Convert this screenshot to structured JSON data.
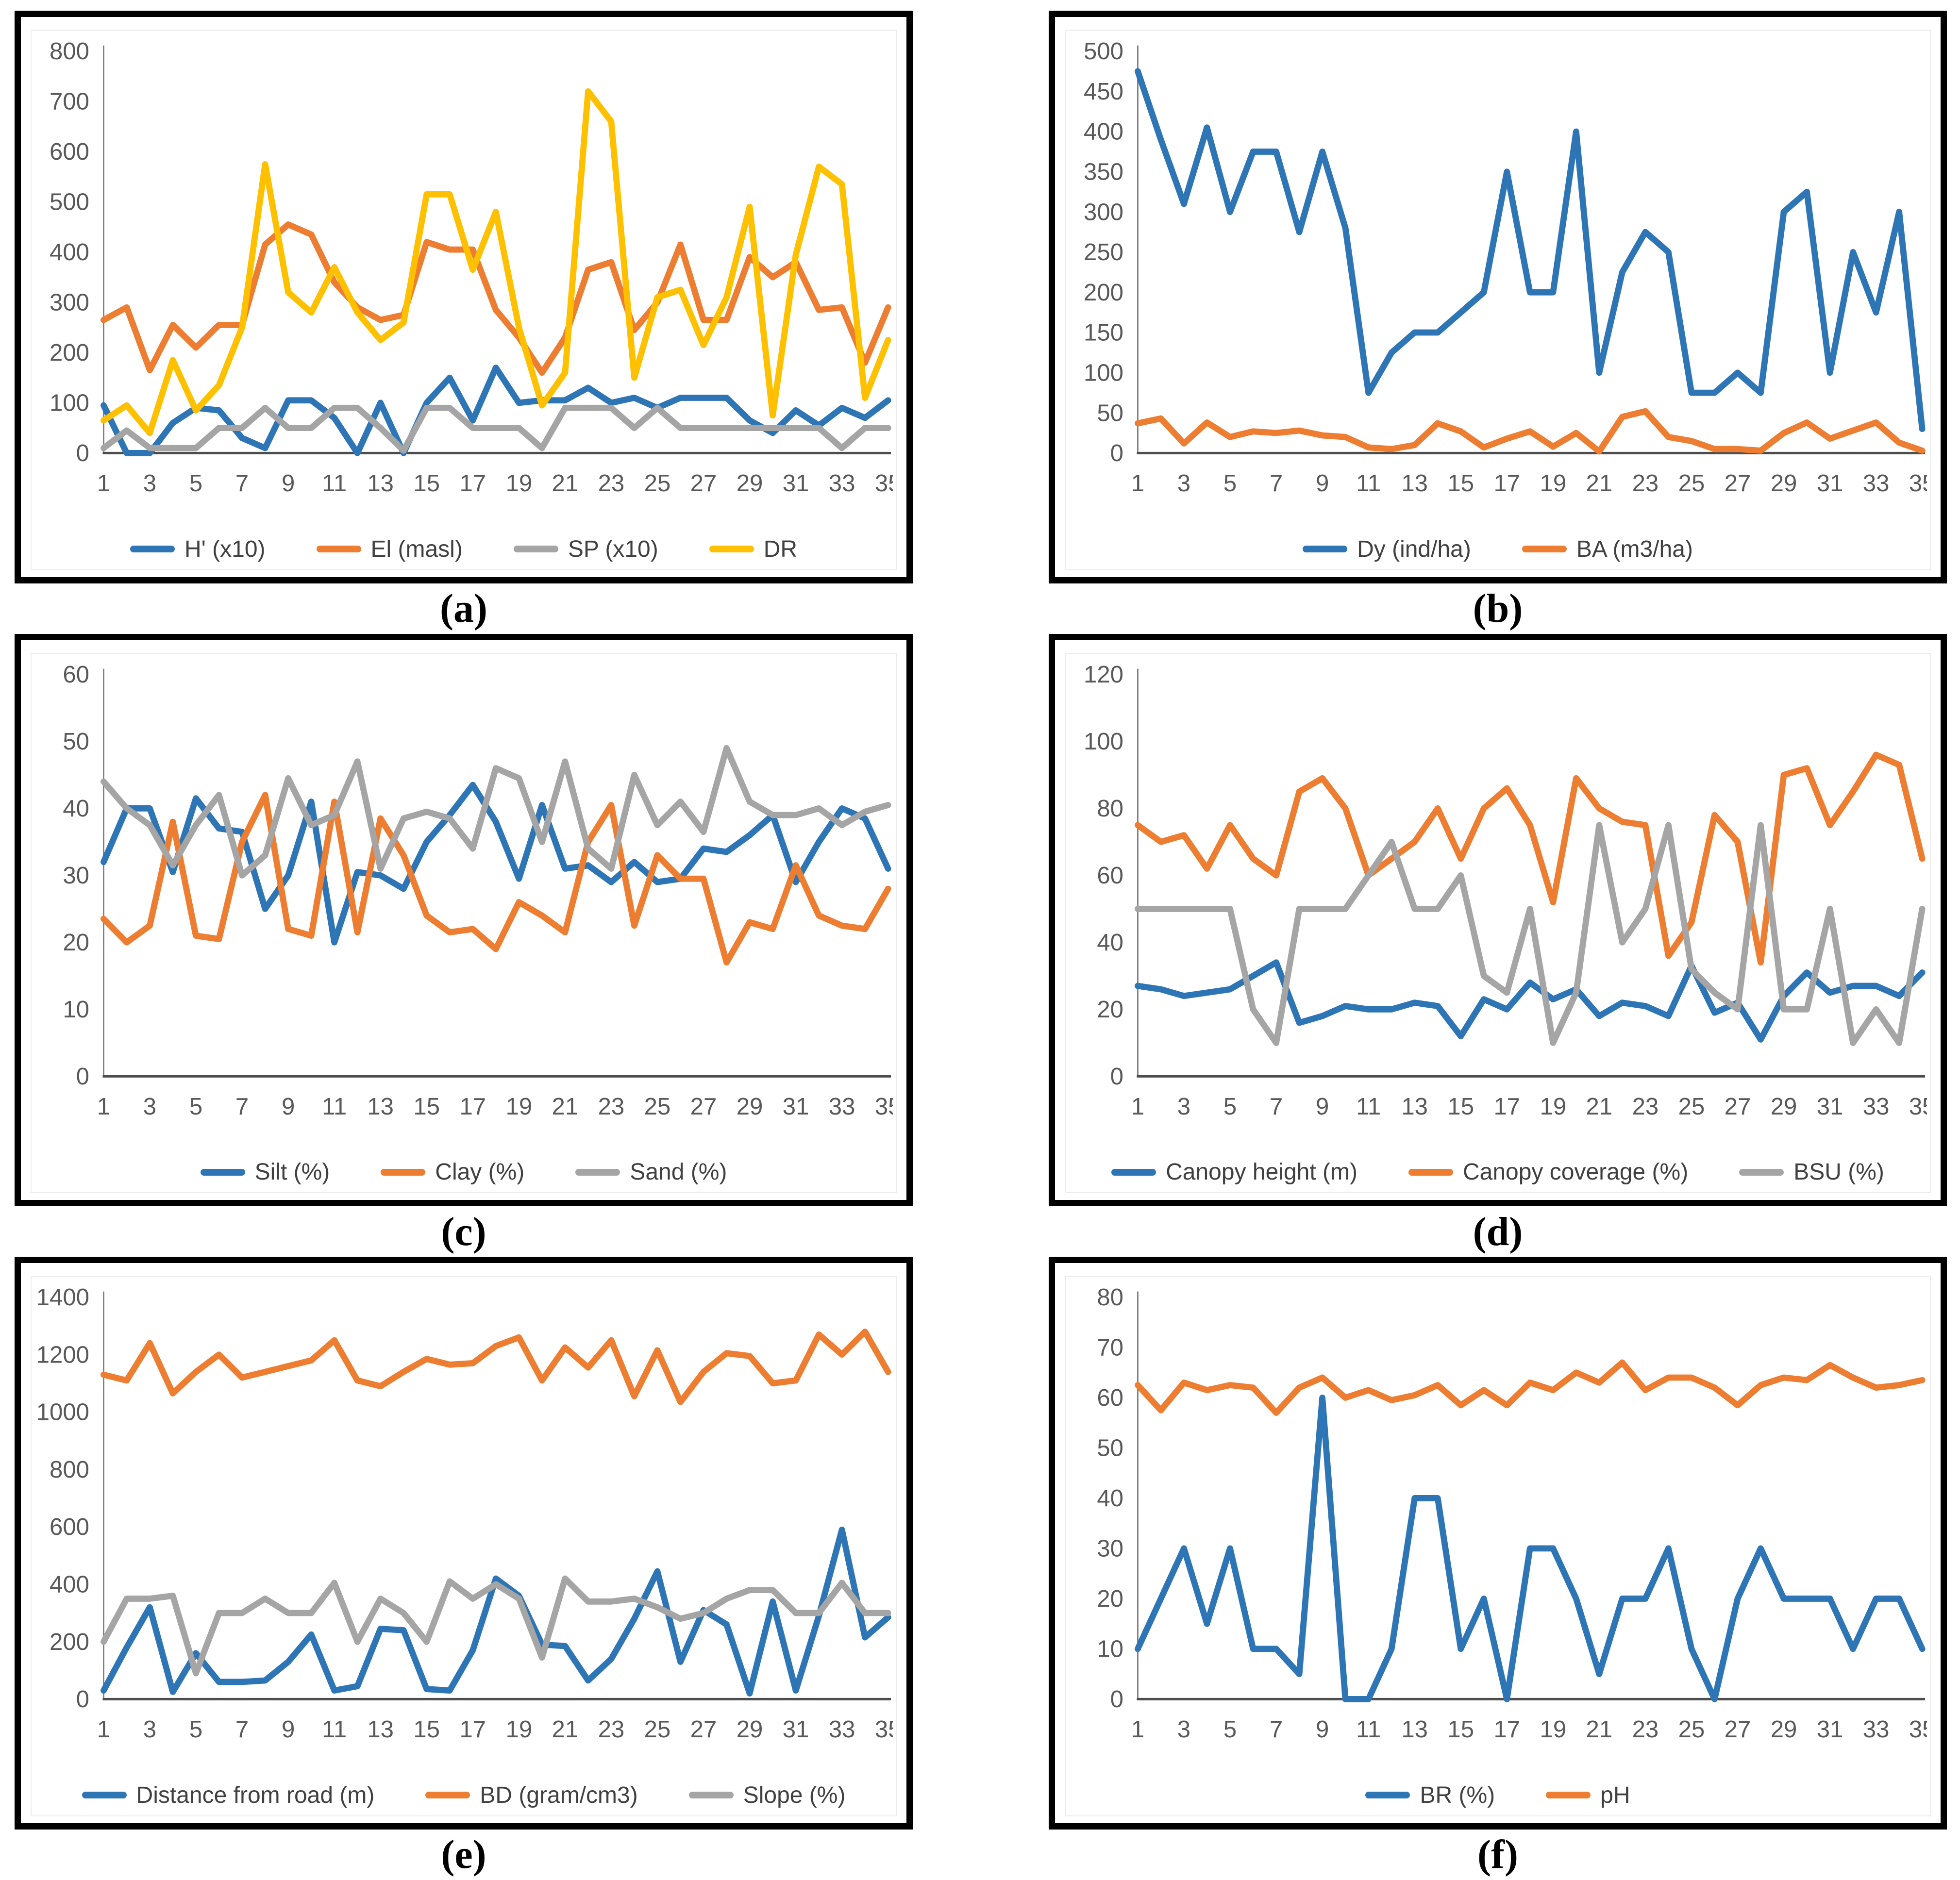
{
  "figure": {
    "background": "#ffffff",
    "panel_border_color": "#000000"
  },
  "axis": {
    "text_color": "#595959",
    "y_line_color": "#808080",
    "x_line_color": "#4d4d4d"
  },
  "x_axis": {
    "n_points": 35,
    "shown_tick_labels": [
      "1",
      "3",
      "5",
      "7",
      "9",
      "11",
      "13",
      "15",
      "17",
      "19",
      "21",
      "23",
      "25",
      "27",
      "29",
      "31",
      "33",
      "35"
    ]
  },
  "chart_data": [
    {
      "panel_letter": "a",
      "caption": "(a)",
      "type": "line",
      "ylim": [
        0,
        800
      ],
      "ytick_step": 100,
      "yticks": [
        0,
        100,
        200,
        300,
        400,
        500,
        600,
        700,
        800
      ],
      "grid": false,
      "legend_position": "bottom",
      "series": [
        {
          "name": "H' (x10)",
          "color": "#2E75B6",
          "values": [
            95,
            0,
            0,
            60,
            90,
            85,
            30,
            10,
            105,
            105,
            70,
            0,
            100,
            0,
            100,
            150,
            65,
            170,
            100,
            105,
            105,
            130,
            100,
            110,
            90,
            110,
            110,
            110,
            65,
            40,
            85,
            55,
            90,
            70,
            105
          ]
        },
        {
          "name": "El (masl)",
          "color": "#ED7D31",
          "values": [
            265,
            290,
            165,
            255,
            210,
            255,
            255,
            415,
            455,
            435,
            340,
            290,
            265,
            275,
            420,
            405,
            405,
            285,
            230,
            160,
            230,
            365,
            380,
            245,
            300,
            415,
            265,
            265,
            390,
            350,
            380,
            285,
            290,
            180,
            290
          ]
        },
        {
          "name": "SP (x10)",
          "color": "#A5A5A5",
          "values": [
            10,
            45,
            10,
            10,
            10,
            50,
            50,
            90,
            50,
            50,
            90,
            90,
            50,
            5,
            90,
            90,
            50,
            50,
            50,
            10,
            90,
            90,
            90,
            50,
            90,
            50,
            50,
            50,
            50,
            50,
            50,
            50,
            10,
            50,
            50
          ]
        },
        {
          "name": "DR",
          "color": "#FFC000",
          "values": [
            65,
            95,
            40,
            185,
            85,
            135,
            250,
            575,
            320,
            280,
            370,
            280,
            225,
            260,
            515,
            515,
            365,
            480,
            250,
            95,
            160,
            720,
            660,
            150,
            310,
            325,
            215,
            310,
            490,
            75,
            395,
            570,
            535,
            110,
            225
          ]
        }
      ]
    },
    {
      "panel_letter": "b",
      "caption": "(b)",
      "type": "line",
      "ylim": [
        0,
        500
      ],
      "ytick_step": 50,
      "yticks": [
        0,
        50,
        100,
        150,
        200,
        250,
        300,
        350,
        400,
        450,
        500
      ],
      "grid": false,
      "legend_position": "bottom",
      "series": [
        {
          "name": "Dy (ind/ha)",
          "color": "#2E75B6",
          "values": [
            475,
            390,
            310,
            405,
            300,
            375,
            375,
            275,
            375,
            280,
            75,
            125,
            150,
            150,
            175,
            200,
            350,
            200,
            200,
            400,
            100,
            225,
            275,
            250,
            75,
            75,
            100,
            75,
            300,
            325,
            100,
            250,
            175,
            300,
            30
          ]
        },
        {
          "name": "BA (m3/ha)",
          "color": "#ED7D31",
          "values": [
            37,
            43,
            12,
            38,
            20,
            27,
            25,
            28,
            22,
            20,
            7,
            5,
            10,
            37,
            27,
            7,
            18,
            27,
            8,
            25,
            2,
            45,
            52,
            20,
            15,
            5,
            5,
            3,
            25,
            38,
            18,
            28,
            38,
            13,
            3
          ]
        }
      ]
    },
    {
      "panel_letter": "c",
      "caption": "(c)",
      "type": "line",
      "ylim": [
        0,
        60
      ],
      "ytick_step": 10,
      "yticks": [
        0,
        10,
        20,
        30,
        40,
        50,
        60
      ],
      "grid": false,
      "legend_position": "bottom",
      "series": [
        {
          "name": "Silt (%)",
          "color": "#2E75B6",
          "values": [
            32,
            40,
            40,
            30.5,
            41.5,
            37,
            36.5,
            25,
            30,
            41,
            20,
            30.5,
            30,
            28,
            35,
            39,
            43.5,
            38,
            29.5,
            40.5,
            31,
            31.5,
            29,
            32,
            29,
            29.5,
            34,
            33.5,
            36,
            39,
            29,
            35,
            40,
            38.5,
            31
          ]
        },
        {
          "name": "Clay (%)",
          "color": "#ED7D31",
          "values": [
            23.5,
            20,
            22.5,
            38,
            21,
            20.5,
            35,
            42,
            22,
            21,
            41,
            21.5,
            38.5,
            33,
            24,
            21.5,
            22,
            19,
            26,
            24,
            21.5,
            35,
            40.5,
            22.5,
            33,
            29.5,
            29.5,
            17,
            23,
            22,
            31.5,
            24,
            22.5,
            22,
            28
          ]
        },
        {
          "name": "Sand (%)",
          "color": "#A5A5A5",
          "values": [
            44,
            40,
            37.5,
            31.5,
            37.5,
            42,
            30,
            33,
            44.5,
            37.5,
            39,
            47,
            31,
            38.5,
            39.5,
            38.5,
            34,
            46,
            44.5,
            35,
            47,
            34,
            31,
            45,
            37.5,
            41,
            36.5,
            49,
            41,
            39,
            39,
            40,
            37.5,
            39.5,
            40.5
          ]
        }
      ]
    },
    {
      "panel_letter": "d",
      "caption": "(d)",
      "type": "line",
      "ylim": [
        0,
        120
      ],
      "ytick_step": 20,
      "yticks": [
        0,
        20,
        40,
        60,
        80,
        100,
        120
      ],
      "grid": false,
      "legend_position": "bottom",
      "series": [
        {
          "name": "Canopy height (m)",
          "color": "#2E75B6",
          "values": [
            27,
            26,
            24,
            25,
            26,
            30,
            34,
            16,
            18,
            21,
            20,
            20,
            22,
            21,
            12,
            23,
            20,
            28,
            23,
            26,
            18,
            22,
            21,
            18,
            33,
            19,
            22,
            11,
            24,
            31,
            25,
            27,
            27,
            24,
            31
          ]
        },
        {
          "name": "Canopy coverage (%)",
          "color": "#ED7D31",
          "values": [
            75,
            70,
            72,
            62,
            75,
            65,
            60,
            85,
            89,
            80,
            60,
            65,
            70,
            80,
            65,
            80,
            86,
            75,
            52,
            89,
            80,
            76,
            75,
            36,
            46,
            78,
            70,
            34,
            90,
            92,
            75,
            85,
            96,
            93,
            65
          ]
        },
        {
          "name": "BSU (%)",
          "color": "#A5A5A5",
          "values": [
            50,
            50,
            50,
            50,
            50,
            20,
            10,
            50,
            50,
            50,
            60,
            70,
            50,
            50,
            60,
            30,
            25,
            50,
            10,
            25,
            75,
            40,
            50,
            75,
            32,
            25,
            20,
            75,
            20,
            20,
            50,
            10,
            20,
            10,
            50
          ]
        }
      ]
    },
    {
      "panel_letter": "e",
      "caption": "(e)",
      "type": "line",
      "ylim": [
        0,
        1400
      ],
      "ytick_step": 200,
      "yticks": [
        0,
        200,
        400,
        600,
        800,
        1000,
        1200,
        1400
      ],
      "grid": false,
      "legend_position": "bottom",
      "series": [
        {
          "name": "Distance from road (m)",
          "color": "#2E75B6",
          "values": [
            30,
            180,
            320,
            25,
            160,
            60,
            60,
            65,
            130,
            225,
            30,
            45,
            245,
            240,
            35,
            30,
            170,
            420,
            360,
            190,
            185,
            65,
            140,
            280,
            445,
            130,
            310,
            260,
            20,
            340,
            30,
            290,
            590,
            215,
            285
          ]
        },
        {
          "name": "BD (gram/cm3)",
          "color": "#ED7D31",
          "values": [
            1130,
            1110,
            1240,
            1065,
            1140,
            1200,
            1120,
            1140,
            1160,
            1180,
            1250,
            1110,
            1090,
            1140,
            1185,
            1165,
            1170,
            1230,
            1260,
            1110,
            1225,
            1155,
            1250,
            1055,
            1215,
            1035,
            1140,
            1205,
            1195,
            1100,
            1110,
            1270,
            1200,
            1280,
            1140
          ]
        },
        {
          "name": "Slope (%)",
          "color": "#A5A5A5",
          "values": [
            200,
            350,
            350,
            360,
            90,
            300,
            300,
            350,
            300,
            300,
            405,
            200,
            350,
            300,
            200,
            410,
            350,
            400,
            350,
            145,
            420,
            340,
            340,
            350,
            320,
            280,
            300,
            350,
            380,
            380,
            300,
            300,
            405,
            300,
            300
          ]
        }
      ]
    },
    {
      "panel_letter": "f",
      "caption": "(f)",
      "type": "line",
      "ylim": [
        0,
        80
      ],
      "ytick_step": 10,
      "yticks": [
        0,
        10,
        20,
        30,
        40,
        50,
        60,
        70,
        80
      ],
      "grid": false,
      "legend_position": "bottom",
      "series": [
        {
          "name": "BR (%)",
          "color": "#2E75B6",
          "values": [
            10,
            20,
            30,
            15,
            30,
            10,
            10,
            5,
            60,
            0,
            0,
            10,
            40,
            40,
            10,
            20,
            0,
            30,
            30,
            20,
            5,
            20,
            20,
            30,
            10,
            0,
            20,
            30,
            20,
            20,
            20,
            10,
            20,
            20,
            10
          ]
        },
        {
          "name": "pH",
          "color": "#ED7D31",
          "values": [
            62.5,
            57.5,
            63,
            61.5,
            62.5,
            62,
            57,
            62,
            64,
            60,
            61.5,
            59.5,
            60.5,
            62.5,
            58.5,
            61.5,
            58.5,
            63,
            61.5,
            65,
            63,
            67,
            61.5,
            64,
            64,
            62,
            58.5,
            62.5,
            64,
            63.5,
            66.5,
            64,
            62,
            62.5,
            63.5
          ]
        }
      ]
    }
  ]
}
